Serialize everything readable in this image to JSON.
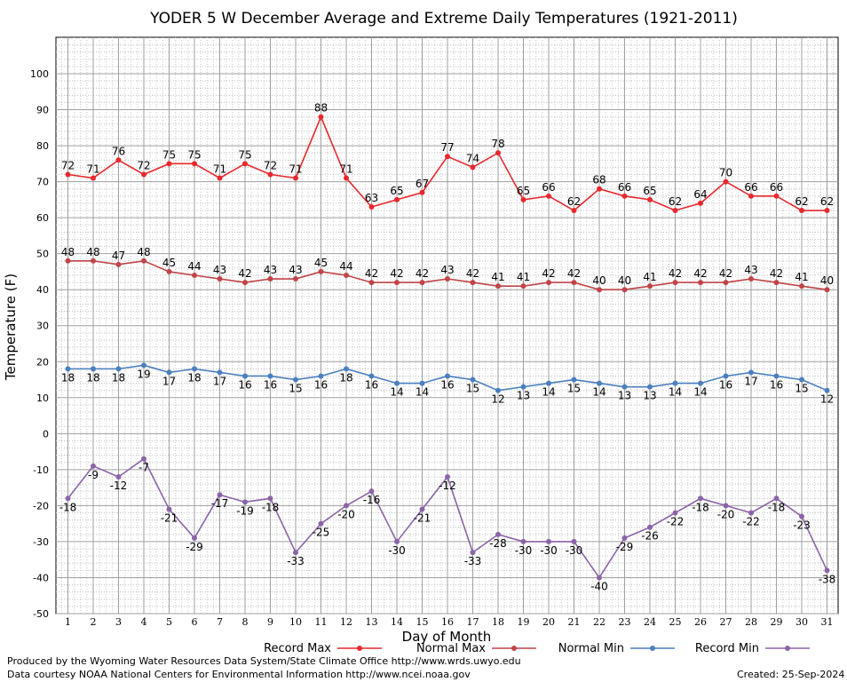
{
  "chart_data": {
    "type": "line",
    "title": "YODER 5 W December Average and Extreme Daily Temperatures (1921-2011)",
    "xlabel": "Day of Month",
    "ylabel": "Temperature (F)",
    "ylim": [
      -50,
      100
    ],
    "yticks": [
      -50,
      -40,
      -30,
      -20,
      -10,
      0,
      10,
      20,
      30,
      40,
      50,
      60,
      70,
      80,
      90,
      100
    ],
    "x": [
      1,
      2,
      3,
      4,
      5,
      6,
      7,
      8,
      9,
      10,
      11,
      12,
      13,
      14,
      15,
      16,
      17,
      18,
      19,
      20,
      21,
      22,
      23,
      24,
      25,
      26,
      27,
      28,
      29,
      30,
      31
    ],
    "grid": true,
    "legend_position": "bottom",
    "series": [
      {
        "name": "Record Max",
        "color": "#e8282d",
        "label_pos": "above",
        "values": [
          72,
          71,
          76,
          72,
          75,
          75,
          71,
          75,
          72,
          71,
          88,
          71,
          63,
          65,
          67,
          77,
          74,
          78,
          65,
          66,
          62,
          68,
          66,
          65,
          62,
          64,
          70,
          66,
          66,
          62,
          62
        ]
      },
      {
        "name": "Normal Max",
        "color": "#c04448",
        "label_pos": "above",
        "values": [
          48,
          48,
          47,
          48,
          45,
          44,
          43,
          42,
          43,
          43,
          45,
          44,
          42,
          42,
          42,
          43,
          42,
          41,
          41,
          42,
          42,
          40,
          40,
          41,
          42,
          42,
          42,
          43,
          42,
          41,
          40
        ]
      },
      {
        "name": "Normal Min",
        "color": "#4a7fc0",
        "label_pos": "below",
        "values": [
          18,
          18,
          18,
          19,
          17,
          18,
          17,
          16,
          16,
          15,
          16,
          18,
          16,
          14,
          14,
          16,
          15,
          12,
          13,
          14,
          15,
          14,
          13,
          13,
          14,
          14,
          16,
          17,
          16,
          15,
          12
        ]
      },
      {
        "name": "Record Min",
        "color": "#8b64a8",
        "label_pos": "below",
        "values": [
          -18,
          -9,
          -12,
          -7,
          -21,
          -29,
          -17,
          -19,
          -18,
          -33,
          -25,
          -20,
          -16,
          -30,
          -21,
          -12,
          -33,
          -28,
          -30,
          -30,
          -30,
          -40,
          -29,
          -26,
          -22,
          -18,
          -20,
          -22,
          -18,
          -23,
          -38
        ]
      }
    ]
  },
  "footer": {
    "producer": "Produced by the Wyoming Water Resources Data System/State Climate Office http://www.wrds.uwyo.edu",
    "courtesy": "Data courtesy NOAA National Centers for Environmental Information http://www.ncei.noaa.gov",
    "created": "Created:  25-Sep-2024"
  }
}
